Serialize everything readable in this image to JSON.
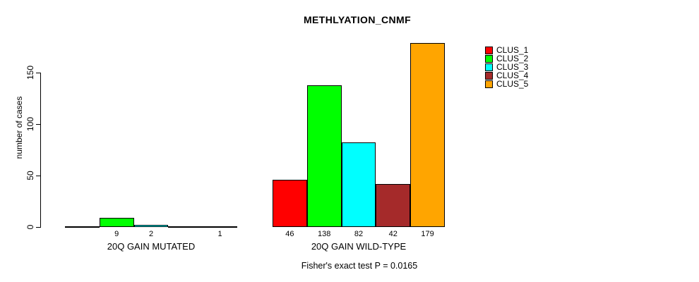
{
  "chart_data": {
    "type": "bar",
    "title": "METHLYATION_CNMF",
    "ylabel": "number of cases",
    "ylim": [
      0,
      180
    ],
    "yticks": [
      0,
      50,
      100,
      150
    ],
    "grid": false,
    "legend_position": "right",
    "categories": [
      "20Q GAIN MUTATED",
      "20Q GAIN WILD-TYPE"
    ],
    "series": [
      {
        "name": "CLUS_1",
        "color": "#FF0000",
        "values": [
          0,
          46
        ]
      },
      {
        "name": "CLUS_2",
        "color": "#00FF00",
        "values": [
          9,
          138
        ]
      },
      {
        "name": "CLUS_3",
        "color": "#00FFFF",
        "values": [
          2,
          82
        ]
      },
      {
        "name": "CLUS_4",
        "color": "#A52A2A",
        "values": [
          0,
          42
        ]
      },
      {
        "name": "CLUS_5",
        "color": "#FFA500",
        "values": [
          1,
          179
        ]
      }
    ],
    "bar_value_labels": {
      "20Q GAIN MUTATED": [
        "",
        "9",
        "2",
        "",
        "1"
      ],
      "20Q GAIN WILD-TYPE": [
        "46",
        "138",
        "82",
        "42",
        "179"
      ]
    },
    "annotation": "Fisher's exact test P = 0.0165"
  }
}
